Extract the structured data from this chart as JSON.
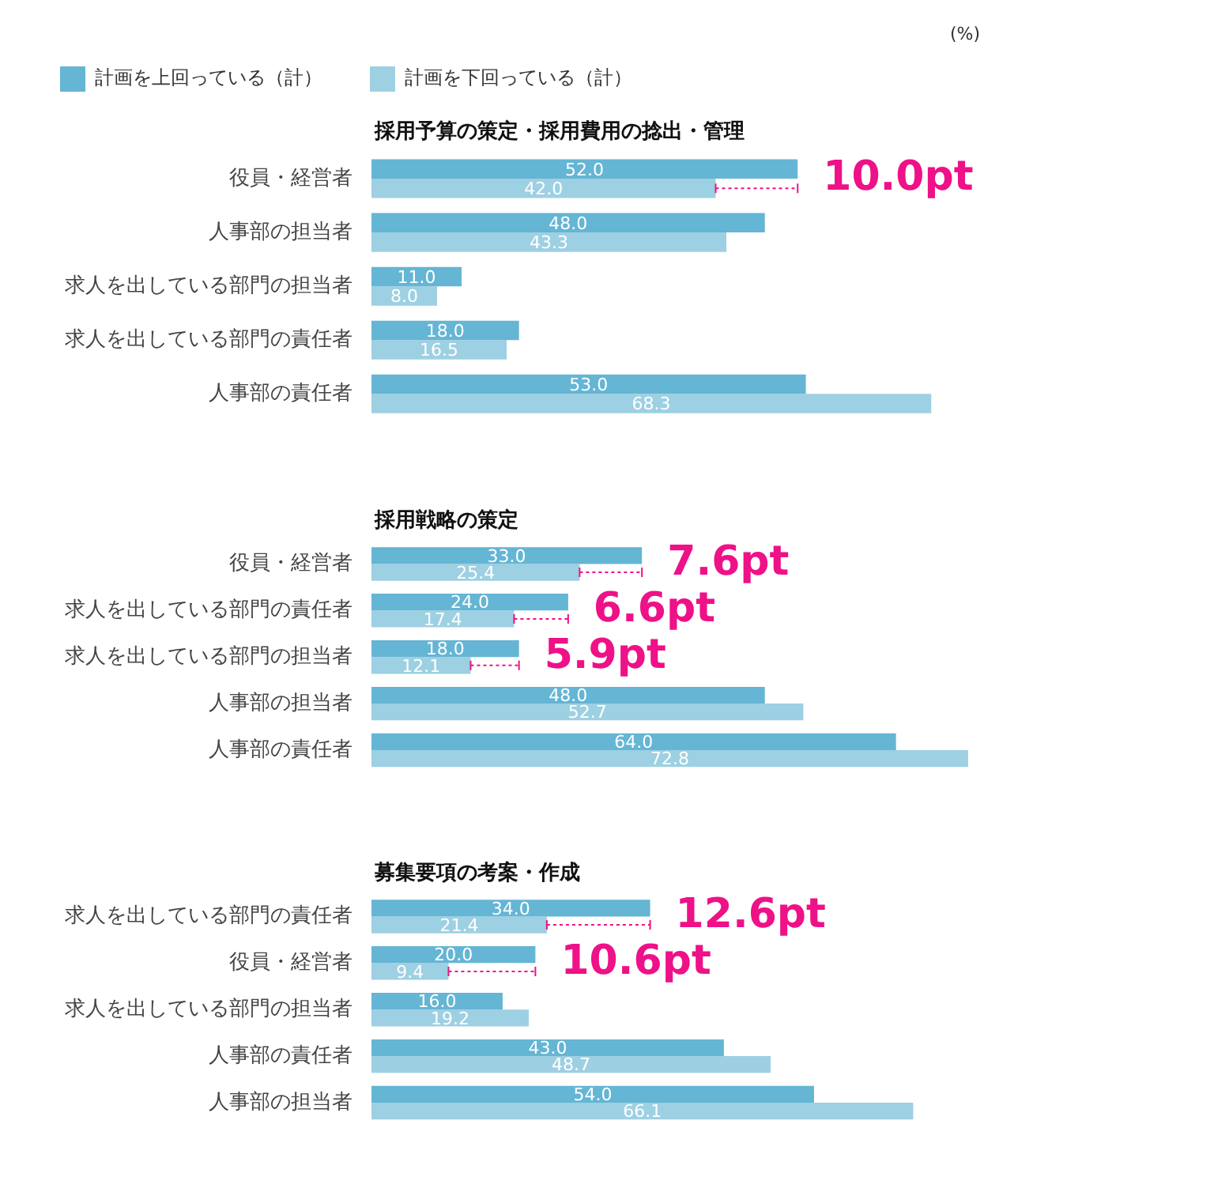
{
  "chart_data": [
    {
      "type": "bar",
      "orientation": "horizontal",
      "title": "採用予算の策定・採用費用の捻出・管理",
      "categories": [
        "役員・経営者",
        "人事部の担当者",
        "求人を出している部門の担当者",
        "求人を出している部門の責任者",
        "人事部の責任者"
      ],
      "series": [
        {
          "name": "計画を上回っている（計）",
          "color": "#65b5d4",
          "values": [
            52.0,
            48.0,
            11.0,
            18.0,
            53.0
          ],
          "value_labels": [
            "52.0",
            "48.0",
            "11.0",
            "18.0",
            "53.0"
          ]
        },
        {
          "name": "計画を下回っている（計）",
          "color": "#9dd0e2",
          "values": [
            42.0,
            43.3,
            8.0,
            16.5,
            68.3
          ],
          "value_labels": [
            "42.0",
            "43.3",
            "8.0",
            "16.5",
            "68.3"
          ]
        }
      ],
      "legend": "top left",
      "grid": false,
      "annotations": [
        "(%)",
        {
          "text": "10.0pt",
          "x": 52.0,
          "y": "役員・経営者"
        }
      ]
    },
    {
      "type": "bar",
      "orientation": "horizontal",
      "title": "採用戦略の策定",
      "categories": [
        "役員・経営者",
        "求人を出している部門の責任者",
        "求人を出している部門の担当者",
        "人事部の担当者",
        "人事部の責任者"
      ],
      "series": [
        {
          "color": "#65b5d4",
          "values": [
            33.0,
            24.0,
            18.0,
            48.0,
            64.0
          ],
          "value_labels": [
            "33.0",
            "24.0",
            "18.0",
            "48.0",
            "64.0"
          ]
        },
        {
          "color": "#9dd0e2",
          "values": [
            25.4,
            17.4,
            12.1,
            52.7,
            72.8
          ],
          "value_labels": [
            "25.4",
            "17.4",
            "12.1",
            "52.7",
            "72.8"
          ]
        }
      ],
      "grid": false,
      "annotations": [
        {
          "text": "7.6pt",
          "x": 33.0,
          "y": "役員・経営者"
        },
        {
          "text": "6.6pt",
          "x": 24.0,
          "y": "求人を出している部門の責任者"
        },
        {
          "text": "5.9pt",
          "x": 18.0,
          "y": "求人を出している部門の担当者"
        }
      ]
    },
    {
      "type": "bar",
      "orientation": "horizontal",
      "title": "募集要項の考案・作成",
      "categories": [
        "求人を出している部門の責任者",
        "役員・経営者",
        "求人を出している部門の担当者",
        "人事部の責任者",
        "人事部の担当者"
      ],
      "series": [
        {
          "color": "#65b5d4",
          "values": [
            34.0,
            20.0,
            16.0,
            43.0,
            54.0
          ],
          "value_labels": [
            "34.0",
            "20.0",
            "16.0",
            "43.0",
            "54.0"
          ]
        },
        {
          "color": "#9dd0e2",
          "values": [
            21.4,
            9.4,
            19.2,
            48.7,
            66.1
          ],
          "value_labels": [
            "21.4",
            "9.4",
            "19.2",
            "48.7",
            "66.1"
          ]
        }
      ],
      "grid": false,
      "annotations": [
        {
          "text": "12.6pt",
          "x": 34.0,
          "y": "求人を出している部門の責任者"
        },
        {
          "text": "10.6pt",
          "x": 20.0,
          "y": "役員・経営者"
        }
      ]
    }
  ]
}
